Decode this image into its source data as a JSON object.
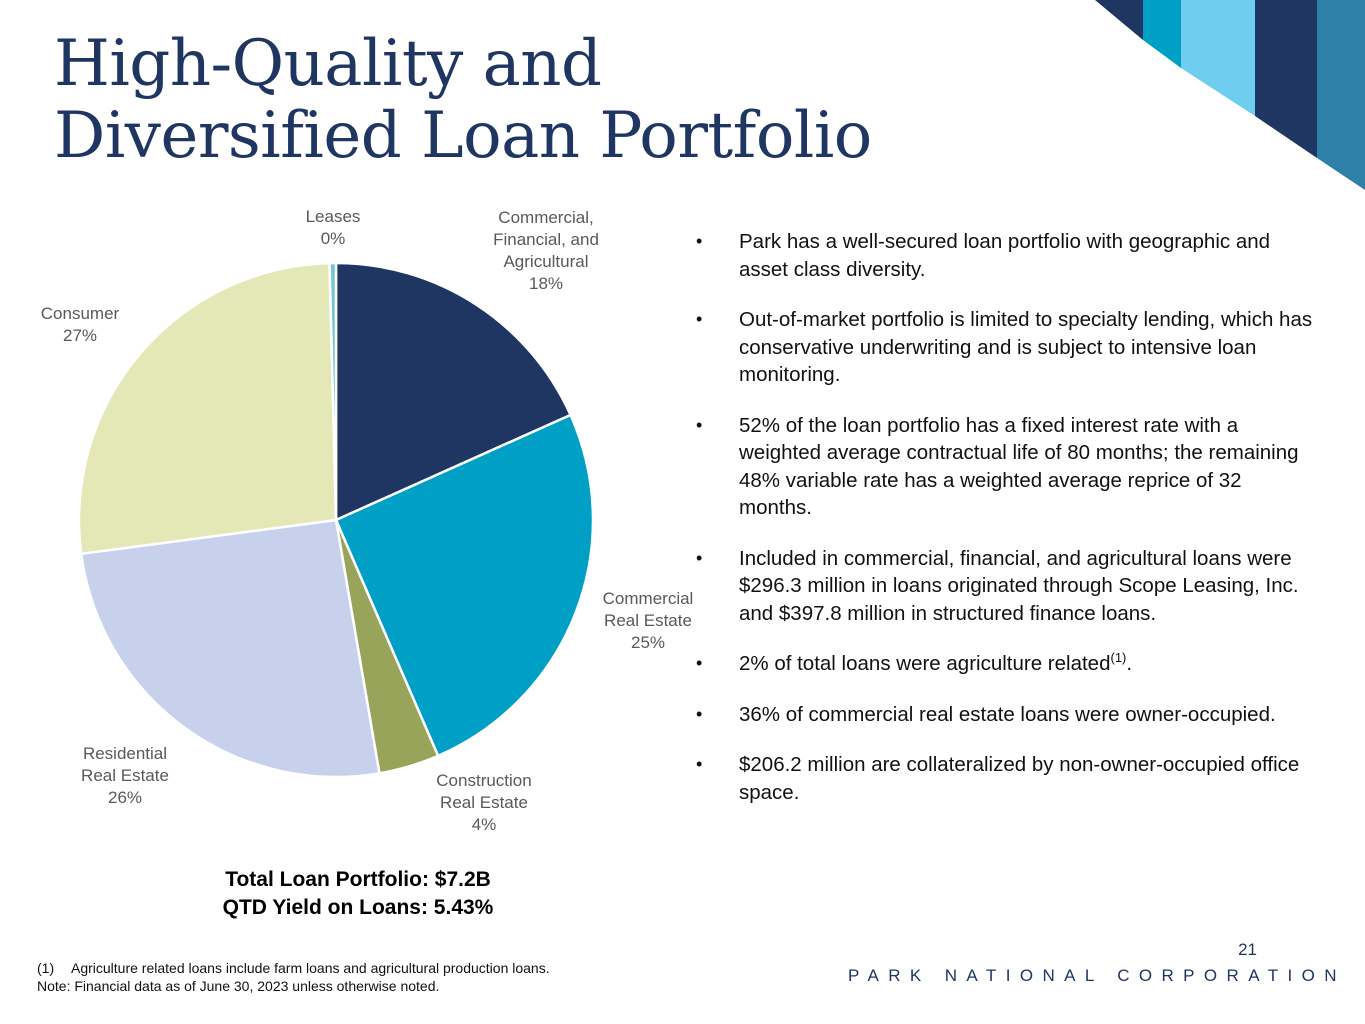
{
  "slide": {
    "title_line1": "High-Quality and",
    "title_line2": "Diversified Loan Portfolio",
    "totals": {
      "line1": "Total Loan Portfolio: $7.2B",
      "line2": "QTD Yield on Loans: 5.43%"
    },
    "bullets": [
      {
        "text": "Park has a well-secured loan portfolio with geographic and asset class diversity."
      },
      {
        "text": "Out-of-market portfolio is limited to specialty lending, which has conservative underwriting and is subject to intensive loan monitoring."
      },
      {
        "text": "52% of the loan portfolio has a fixed interest rate with a weighted average contractual life of 80 months; the remaining 48% variable rate has a weighted average reprice of 32 months."
      },
      {
        "text": "Included in commercial, financial, and agricultural loans were $296.3 million in loans originated through Scope Leasing, Inc. and $397.8 million in structured finance loans."
      },
      {
        "text": "2% of total loans were agriculture related",
        "sup": "(1)",
        "suffix": "."
      },
      {
        "text": "36% of commercial real estate loans were owner-occupied."
      },
      {
        "text": "$206.2 million are collateralized by non-owner-occupied office space."
      }
    ],
    "bullet_symbol": "•",
    "footnote": {
      "marker": "(1)",
      "text": "Agriculture related loans include farm loans and agricultural production loans.",
      "note": "Note: Financial data as of June 30, 2023 unless otherwise noted."
    },
    "page_number": "21",
    "company": "PARK NATIONAL CORPORATION",
    "colors": {
      "title": "#1f3562",
      "navy": "#1f3562",
      "cyan": "#00a0c6",
      "light_blue": "#6fcdf0",
      "steel": "#2f80a8"
    }
  },
  "chart_data": {
    "type": "pie",
    "title": "",
    "unit": "%",
    "slices": [
      {
        "label": [
          "Commercial,",
          "Financial, and",
          "Agricultural"
        ],
        "display": "18%",
        "value": 18.3,
        "color": "#1f3562"
      },
      {
        "label": [
          "Commercial",
          "Real Estate"
        ],
        "display": "25%",
        "value": 25.2,
        "color": "#00a0c6"
      },
      {
        "label": [
          "Construction",
          "Real Estate"
        ],
        "display": "4%",
        "value": 3.8,
        "color": "#99a45b"
      },
      {
        "label": [
          "Residential",
          "Real Estate"
        ],
        "display": "26%",
        "value": 25.6,
        "color": "#c7d1ec"
      },
      {
        "label": [
          "Consumer"
        ],
        "display": "27%",
        "value": 26.7,
        "color": "#e4e8b7"
      },
      {
        "label": [
          "Leases"
        ],
        "display": "0%",
        "value": 0.4,
        "color": "#74c6d6"
      }
    ],
    "start_angle_deg": 0,
    "direction": "clockwise"
  }
}
